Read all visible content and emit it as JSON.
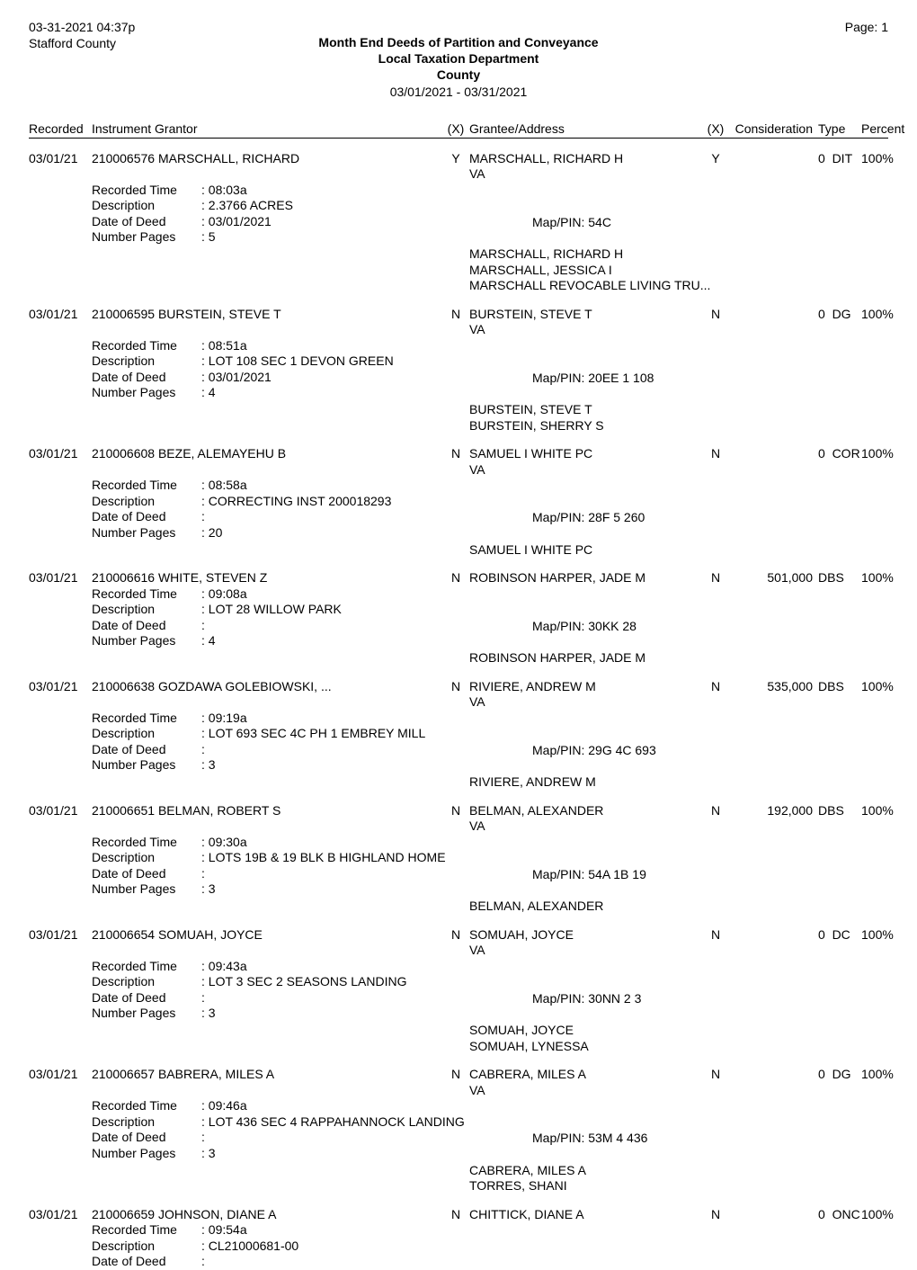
{
  "header": {
    "timestamp": "03-31-2021 04:37p",
    "county": "Stafford County",
    "page_label": "Page: 1",
    "title_line1": "Month End Deeds of Partition and Conveyance",
    "title_line2": "Local Taxation Department",
    "title_line3": "County",
    "date_range": "03/01/2021 - 03/31/2021"
  },
  "columns": {
    "recorded": "Recorded",
    "instrument_grantor": "Instrument   Grantor",
    "x1": "(X)",
    "grantee_address": "Grantee/Address",
    "x2": "(X)",
    "consideration": "Consideration",
    "type": "Type",
    "percent": "Percent"
  },
  "labels": {
    "recorded_time": "Recorded Time",
    "description": "Description",
    "date_of_deed": "Date of Deed",
    "number_pages": "Number Pages",
    "map_pin": "Map/PIN:"
  },
  "entries": [
    {
      "date": "03/01/21",
      "instrument": "210006576",
      "grantor": "MARSCHALL, RICHARD",
      "x1": "Y",
      "recorded_time": "08:03a",
      "description": "2.3766  ACRES",
      "date_of_deed": "03/01/2021",
      "number_pages": "5",
      "grantee_line1": "MARSCHALL, RICHARD H",
      "grantee_line2": "VA",
      "map_pin": "54C",
      "x2": "Y",
      "consideration": "",
      "type_n": "0",
      "type_code": "DIT",
      "percent": "100%",
      "other_grantees": [
        "MARSCHALL, RICHARD H",
        "MARSCHALL, JESSICA I",
        "MARSCHALL REVOCABLE LIVING TRU..."
      ]
    },
    {
      "date": "03/01/21",
      "instrument": "210006595",
      "grantor": "BURSTEIN, STEVE T",
      "x1": "N",
      "recorded_time": "08:51a",
      "description": "LOT 108 SEC 1 DEVON GREEN",
      "date_of_deed": "03/01/2021",
      "number_pages": "4",
      "grantee_line1": "BURSTEIN, STEVE T",
      "grantee_line2": "VA",
      "map_pin": "20EE 1 108",
      "x2": "N",
      "consideration": "",
      "type_n": "0",
      "type_code": "DG",
      "percent": "100%",
      "other_grantees": [
        "BURSTEIN, STEVE T",
        "BURSTEIN, SHERRY S"
      ]
    },
    {
      "date": "03/01/21",
      "instrument": "210006608",
      "grantor": "BEZE, ALEMAYEHU B",
      "x1": "N",
      "recorded_time": "08:58a",
      "description": "CORRECTING INST 200018293",
      "date_of_deed": "",
      "number_pages": "20",
      "grantee_line1": "SAMUEL I WHITE  PC",
      "grantee_line2": "VA",
      "map_pin": "28F 5 260",
      "x2": "N",
      "consideration": "",
      "type_n": "0",
      "type_code": "COR",
      "percent": "100%",
      "other_grantees": [
        "SAMUEL I WHITE  PC"
      ]
    },
    {
      "date": "03/01/21",
      "instrument": "210006616",
      "grantor": "WHITE, STEVEN Z",
      "x1": "N",
      "recorded_time": "09:08a",
      "description": "LOT 28 WILLOW PARK",
      "date_of_deed": "",
      "number_pages": "4",
      "grantee_line1": "ROBINSON HARPER, JADE M",
      "grantee_line2": "",
      "map_pin": "30KK  28",
      "x2": "N",
      "consideration": "501,000",
      "type_n": "",
      "type_code": "DBS",
      "percent": "100%",
      "other_grantees": [
        "ROBINSON HARPER, JADE M"
      ]
    },
    {
      "date": "03/01/21",
      "instrument": "210006638",
      "grantor": "GOZDAWA GOLEBIOWSKI, ...",
      "x1": "N",
      "recorded_time": "09:19a",
      "description": "LOT 693 SEC 4C PH 1 EMBREY MILL",
      "date_of_deed": "",
      "number_pages": "3",
      "grantee_line1": "RIVIERE, ANDREW M",
      "grantee_line2": "VA",
      "map_pin": "29G 4C 693",
      "x2": "N",
      "consideration": "535,000",
      "type_n": "",
      "type_code": "DBS",
      "percent": "100%",
      "other_grantees": [
        "RIVIERE, ANDREW M"
      ]
    },
    {
      "date": "03/01/21",
      "instrument": "210006651",
      "grantor": "BELMAN, ROBERT S",
      "x1": "N",
      "recorded_time": "09:30a",
      "description": "LOTS 19B & 19 BLK B HIGHLAND HOME",
      "date_of_deed": "",
      "number_pages": "3",
      "grantee_line1": "BELMAN, ALEXANDER",
      "grantee_line2": "VA",
      "map_pin": "54A 1B 19",
      "x2": "N",
      "consideration": "192,000",
      "type_n": "",
      "type_code": "DBS",
      "percent": "100%",
      "other_grantees": [
        "BELMAN, ALEXANDER"
      ]
    },
    {
      "date": "03/01/21",
      "instrument": "210006654",
      "grantor": "SOMUAH, JOYCE",
      "x1": "N",
      "recorded_time": "09:43a",
      "description": "LOT 3 SEC 2 SEASONS LANDING",
      "date_of_deed": "",
      "number_pages": "3",
      "grantee_line1": "SOMUAH, JOYCE",
      "grantee_line2": "VA",
      "map_pin": "30NN 2 3",
      "x2": "N",
      "consideration": "",
      "type_n": "0",
      "type_code": "DC",
      "percent": "100%",
      "other_grantees": [
        "SOMUAH, JOYCE",
        "SOMUAH, LYNESSA"
      ]
    },
    {
      "date": "03/01/21",
      "instrument": "210006657",
      "grantor": "BABRERA, MILES A",
      "x1": "N",
      "recorded_time": "09:46a",
      "description": "LOT 436 SEC 4 RAPPAHANNOCK LANDING",
      "date_of_deed": "",
      "number_pages": "3",
      "grantee_line1": "CABRERA, MILES A",
      "grantee_line2": "VA",
      "map_pin": "53M 4 436",
      "x2": "N",
      "consideration": "",
      "type_n": "0",
      "type_code": "DG",
      "percent": "100%",
      "other_grantees": [
        "CABRERA, MILES A",
        "TORRES, SHANI"
      ]
    },
    {
      "date": "03/01/21",
      "instrument": "210006659",
      "grantor": "JOHNSON, DIANE A",
      "x1": "N",
      "recorded_time": "09:54a",
      "description": "CL21000681-00",
      "date_of_deed": "",
      "number_pages": "",
      "grantee_line1": "CHITTICK, DIANE A",
      "grantee_line2": "",
      "map_pin": "",
      "x2": "N",
      "consideration": "",
      "type_n": "0",
      "type_code": "ONC",
      "percent": "100%",
      "other_grantees": []
    }
  ]
}
